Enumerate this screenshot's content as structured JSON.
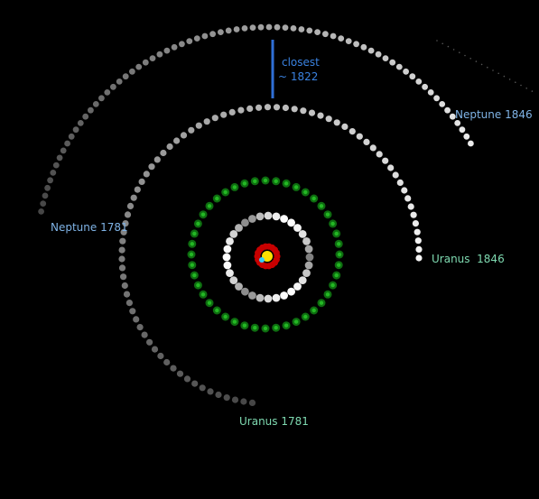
{
  "labels": {
    "neptune_start": "Neptune 1781",
    "neptune_end": "Neptune 1846",
    "uranus_start": "Uranus 1781",
    "uranus_end": "Uranus  1846",
    "closest": "closest",
    "closest_year": "~ 1822"
  },
  "colors": {
    "background": "#000000",
    "neptune_label": "#7fb3e6",
    "uranus_label": "#7ed9b0",
    "closest_marker": "#2f6fd6",
    "sun": "#ffe000",
    "inner_ring": "#d00000",
    "saturn_ring": "#d8d8d8",
    "jupiter_ring": "#1f9a1f"
  }
}
